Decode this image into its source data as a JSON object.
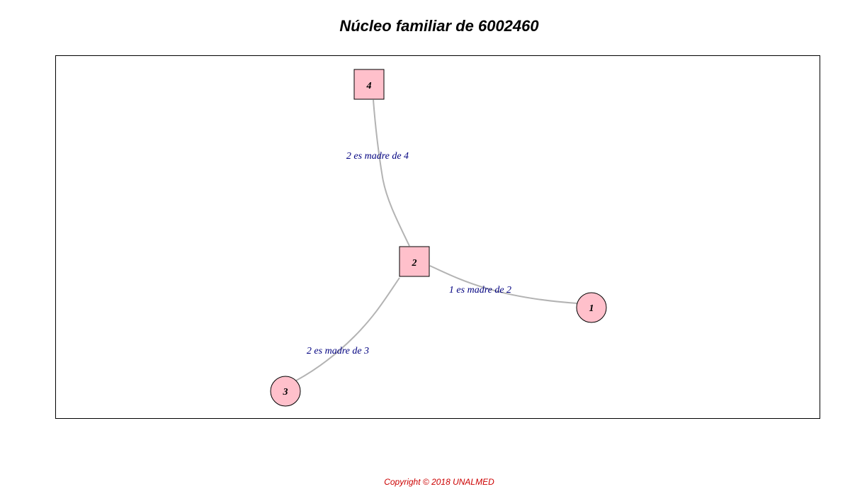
{
  "title": "Núcleo familiar de 6002460",
  "copyright": "Copyright © 2018 UNALMED",
  "colors": {
    "node_fill": "#ffc0cb",
    "node_stroke": "#000000",
    "edge": "#b3b3b3",
    "edge_label": "#000080",
    "copyright": "#cc0000"
  },
  "graph": {
    "nodes": [
      {
        "id": "1",
        "label": "1",
        "shape": "circle"
      },
      {
        "id": "2",
        "label": "2",
        "shape": "square"
      },
      {
        "id": "3",
        "label": "3",
        "shape": "circle"
      },
      {
        "id": "4",
        "label": "4",
        "shape": "square"
      }
    ],
    "edges": [
      {
        "from": "2",
        "to": "4",
        "label": "2 es madre de 4"
      },
      {
        "from": "1",
        "to": "2",
        "label": "1 es madre de 2"
      },
      {
        "from": "2",
        "to": "3",
        "label": "2 es madre de 3"
      }
    ]
  }
}
